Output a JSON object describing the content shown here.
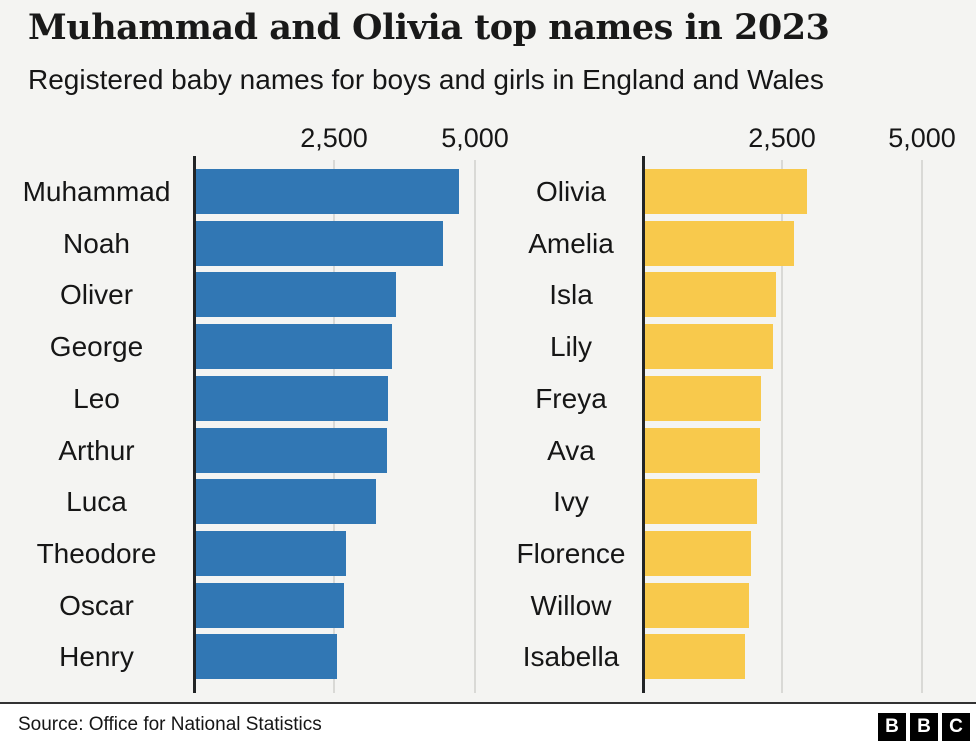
{
  "header": {
    "title": "Muhammad and Olivia top names in 2023",
    "subtitle": "Registered baby names for boys and girls in England and Wales"
  },
  "axis": {
    "tick_labels": [
      "2,500",
      "5,000"
    ]
  },
  "chart_data": [
    {
      "type": "bar",
      "orientation": "horizontal",
      "series": "Boys",
      "categories": [
        "Muhammad",
        "Noah",
        "Oliver",
        "George",
        "Leo",
        "Arthur",
        "Luca",
        "Theodore",
        "Oscar",
        "Henry"
      ],
      "values": [
        4660,
        4380,
        3550,
        3480,
        3410,
        3380,
        3190,
        2660,
        2620,
        2500
      ],
      "color": "#3177b4",
      "xlim": [
        0,
        5000
      ],
      "xticks": [
        2500,
        5000
      ],
      "xtick_labels": [
        "2,500",
        "5,000"
      ],
      "grid": true,
      "legend": "none"
    },
    {
      "type": "bar",
      "orientation": "horizontal",
      "series": "Girls",
      "categories": [
        "Olivia",
        "Amelia",
        "Isla",
        "Lily",
        "Freya",
        "Ava",
        "Ivy",
        "Florence",
        "Willow",
        "Isabella"
      ],
      "values": [
        2890,
        2660,
        2340,
        2290,
        2070,
        2050,
        2000,
        1890,
        1860,
        1790
      ],
      "color": "#f8c94c",
      "xlim": [
        0,
        5000
      ],
      "xticks": [
        2500,
        5000
      ],
      "xtick_labels": [
        "2,500",
        "5,000"
      ],
      "grid": true,
      "legend": "none"
    }
  ],
  "colors": {
    "background": "#f4f4f2",
    "boys_bar": "#3177b4",
    "girls_bar": "#f8c94c",
    "axis_line": "#222426",
    "gridline": "#d9d9d6",
    "text": "#161616"
  },
  "footer": {
    "source": "Source: Office for National Statistics",
    "logo_letters": [
      "B",
      "B",
      "C"
    ]
  }
}
